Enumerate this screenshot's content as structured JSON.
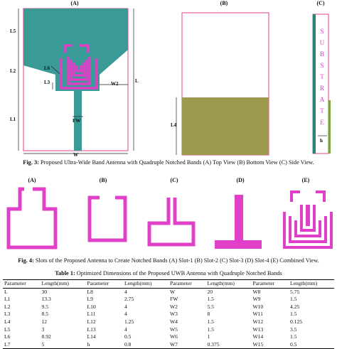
{
  "fig3": {
    "panel_a": "(A)",
    "panel_b": "(B)",
    "panel_c": "(C)",
    "dims": {
      "l5": "L5",
      "l2": "L2",
      "l1": "L1",
      "l6": "L6",
      "l3": "L3",
      "w2": "W2",
      "l": "L",
      "fw": "FW",
      "w": "W",
      "l4": "L4",
      "h": "h"
    },
    "substrate_letters": [
      "S",
      "U",
      "B",
      "S",
      "T",
      "R",
      "A",
      "T",
      "E"
    ],
    "caption_label": "Fig. 3:",
    "caption_text": " Proposed Ultra-Wide Band Antenna with Quadruple Notched Bands (A) Top View (B) Bottom View (C) Side View."
  },
  "fig4": {
    "panel_a": "(A)",
    "panel_b": "(B)",
    "panel_c": "(C)",
    "panel_d": "(D)",
    "panel_e": "(E)",
    "caption_label": "Fig. 4:",
    "caption_text": " Slots of the Proposed Antenna to Create Notched Bands (A) Slot-1 (B) Slot-2 (C) Slot-3 (D) Slot-4 (E) Combined View."
  },
  "table": {
    "caption_label": "Table 1:",
    "caption_text": " Optimized Dimensions of the Proposed UWB Antenna with Quadruple Notched Bands",
    "headers": [
      "Parameter",
      "Length(mm)",
      "Parameter",
      "Length(mm)",
      "Parameter",
      "Length(mm)",
      "Parameter",
      "Length(mm)"
    ],
    "rows": [
      [
        "L",
        "30",
        "L8",
        "4",
        "W",
        "20",
        "W8",
        "5.75"
      ],
      [
        "L1",
        "13.3",
        "L9",
        "2.75",
        "FW",
        "1.5",
        "W9",
        "1.5"
      ],
      [
        "L2",
        "9.5",
        "L10",
        "4",
        "W2",
        "5.5",
        "W10",
        "4.25"
      ],
      [
        "L3",
        "8.5",
        "L11",
        "4",
        "W3",
        "8",
        "W11",
        "1.5"
      ],
      [
        "L4",
        "12",
        "L12",
        "1.25",
        "W4",
        "1.5",
        "W12",
        "0.125"
      ],
      [
        "L5",
        "3",
        "L13",
        "4",
        "W5",
        "1.5",
        "W13",
        "3.5"
      ],
      [
        "L6",
        "8.92",
        "L14",
        "0.5",
        "W6",
        "1",
        "W14",
        "1.5"
      ],
      [
        "L7",
        "5",
        "h",
        "0.8",
        "W7",
        "0.375",
        "W15",
        "0.5"
      ]
    ]
  },
  "colors": {
    "patch": "#3a9a95",
    "ground": "#9b9a4f",
    "slot": "#e040c8",
    "substrate_border": "#e0408a",
    "side_metal": "#2f7f7a",
    "side_ground": "#7fa53a"
  }
}
